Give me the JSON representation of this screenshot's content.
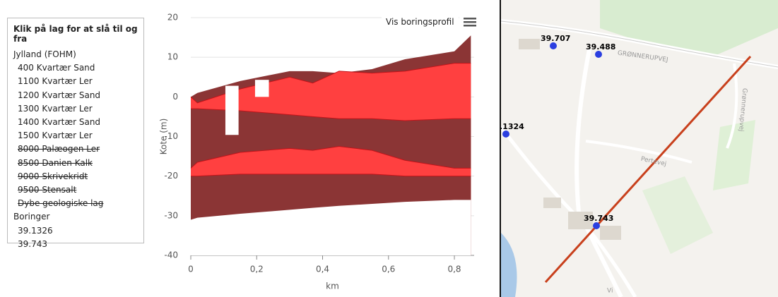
{
  "panel": {
    "title": "Klik på lag for at slå til og fra",
    "group": "Jylland (FOHM)",
    "layers": [
      {
        "label": "400 Kvartær Sand",
        "struck": false
      },
      {
        "label": "1100 Kvartær Ler",
        "struck": false
      },
      {
        "label": "1200 Kvartær Sand",
        "struck": false
      },
      {
        "label": "1300 Kvartær Ler",
        "struck": false
      },
      {
        "label": "1400 Kvartær Sand",
        "struck": false
      },
      {
        "label": "1500 Kvartær Ler",
        "struck": false
      },
      {
        "label": "8000 Palæogen Ler",
        "struck": true
      },
      {
        "label": "8500 Danien Kalk",
        "struck": true
      },
      {
        "label": "9000 Skrivekridt",
        "struck": true
      },
      {
        "label": "9500 Stensalt",
        "struck": true
      },
      {
        "label": "Dybe geologiske lag",
        "struck": true
      }
    ],
    "borings_title": "Boringer",
    "borings": [
      "39.1326",
      "39.743"
    ]
  },
  "buttons": {
    "profile": "Vis boringsprofil"
  },
  "chart_data": {
    "type": "area",
    "xlabel": "km",
    "ylabel": "Kote (m)",
    "x": [
      0,
      0.02,
      0.15,
      0.3,
      0.37,
      0.45,
      0.55,
      0.65,
      0.8,
      0.85
    ],
    "series": [
      {
        "color": "#8b3535",
        "values": [
          0,
          1,
          4,
          6.5,
          6.5,
          6,
          7,
          9.5,
          11.5,
          15.5
        ]
      },
      {
        "color": "#ff4040",
        "values": [
          0,
          -1.5,
          2,
          5,
          3.5,
          6.5,
          6,
          6.5,
          8.5,
          8.5
        ]
      },
      {
        "color": "#8b3535",
        "values": [
          -3,
          -3,
          -3.5,
          -4.5,
          -5,
          -5.5,
          -5.5,
          -6,
          -5.5,
          -5.5
        ]
      },
      {
        "color": "#ff4040",
        "values": [
          -18,
          -16.5,
          -14,
          -13,
          -13.5,
          -12.5,
          -13.5,
          -16,
          -18,
          -18
        ]
      },
      {
        "color": "#8b3535",
        "values": [
          -20,
          -20,
          -19.5,
          -19.5,
          -19.5,
          -19.5,
          -19.5,
          -20,
          -20,
          -20
        ]
      }
    ],
    "base": [
      -31,
      -30.5,
      -29.5,
      -28.5,
      -28,
      -27.5,
      -27,
      -26.5,
      -26,
      -26
    ],
    "borings": [
      {
        "x0": 0.105,
        "x1": 0.145,
        "top": 2.8,
        "bottom": -9.6
      },
      {
        "x0": 0.195,
        "x1": 0.237,
        "top": 4.3,
        "bottom": 0
      }
    ],
    "xlim": [
      0,
      0.86
    ],
    "ylim": [
      -40,
      20
    ],
    "xticks": [
      0,
      {
        "value": 0.2,
        "label": "0,2"
      },
      {
        "value": 0.4,
        "label": "0,4"
      },
      {
        "value": 0.6,
        "label": "0,6"
      },
      {
        "value": 0.8,
        "label": "0,8"
      }
    ],
    "yticks": [
      -40,
      -30,
      -20,
      -10,
      0,
      10,
      20
    ],
    "grid": true
  },
  "map": {
    "points": [
      "39.707",
      "39.488",
      ".1324",
      "39.743"
    ],
    "roads": [
      "GRØNNERUPVEJ",
      "Pertevej",
      "Grønnerupvej",
      "Vi"
    ]
  }
}
